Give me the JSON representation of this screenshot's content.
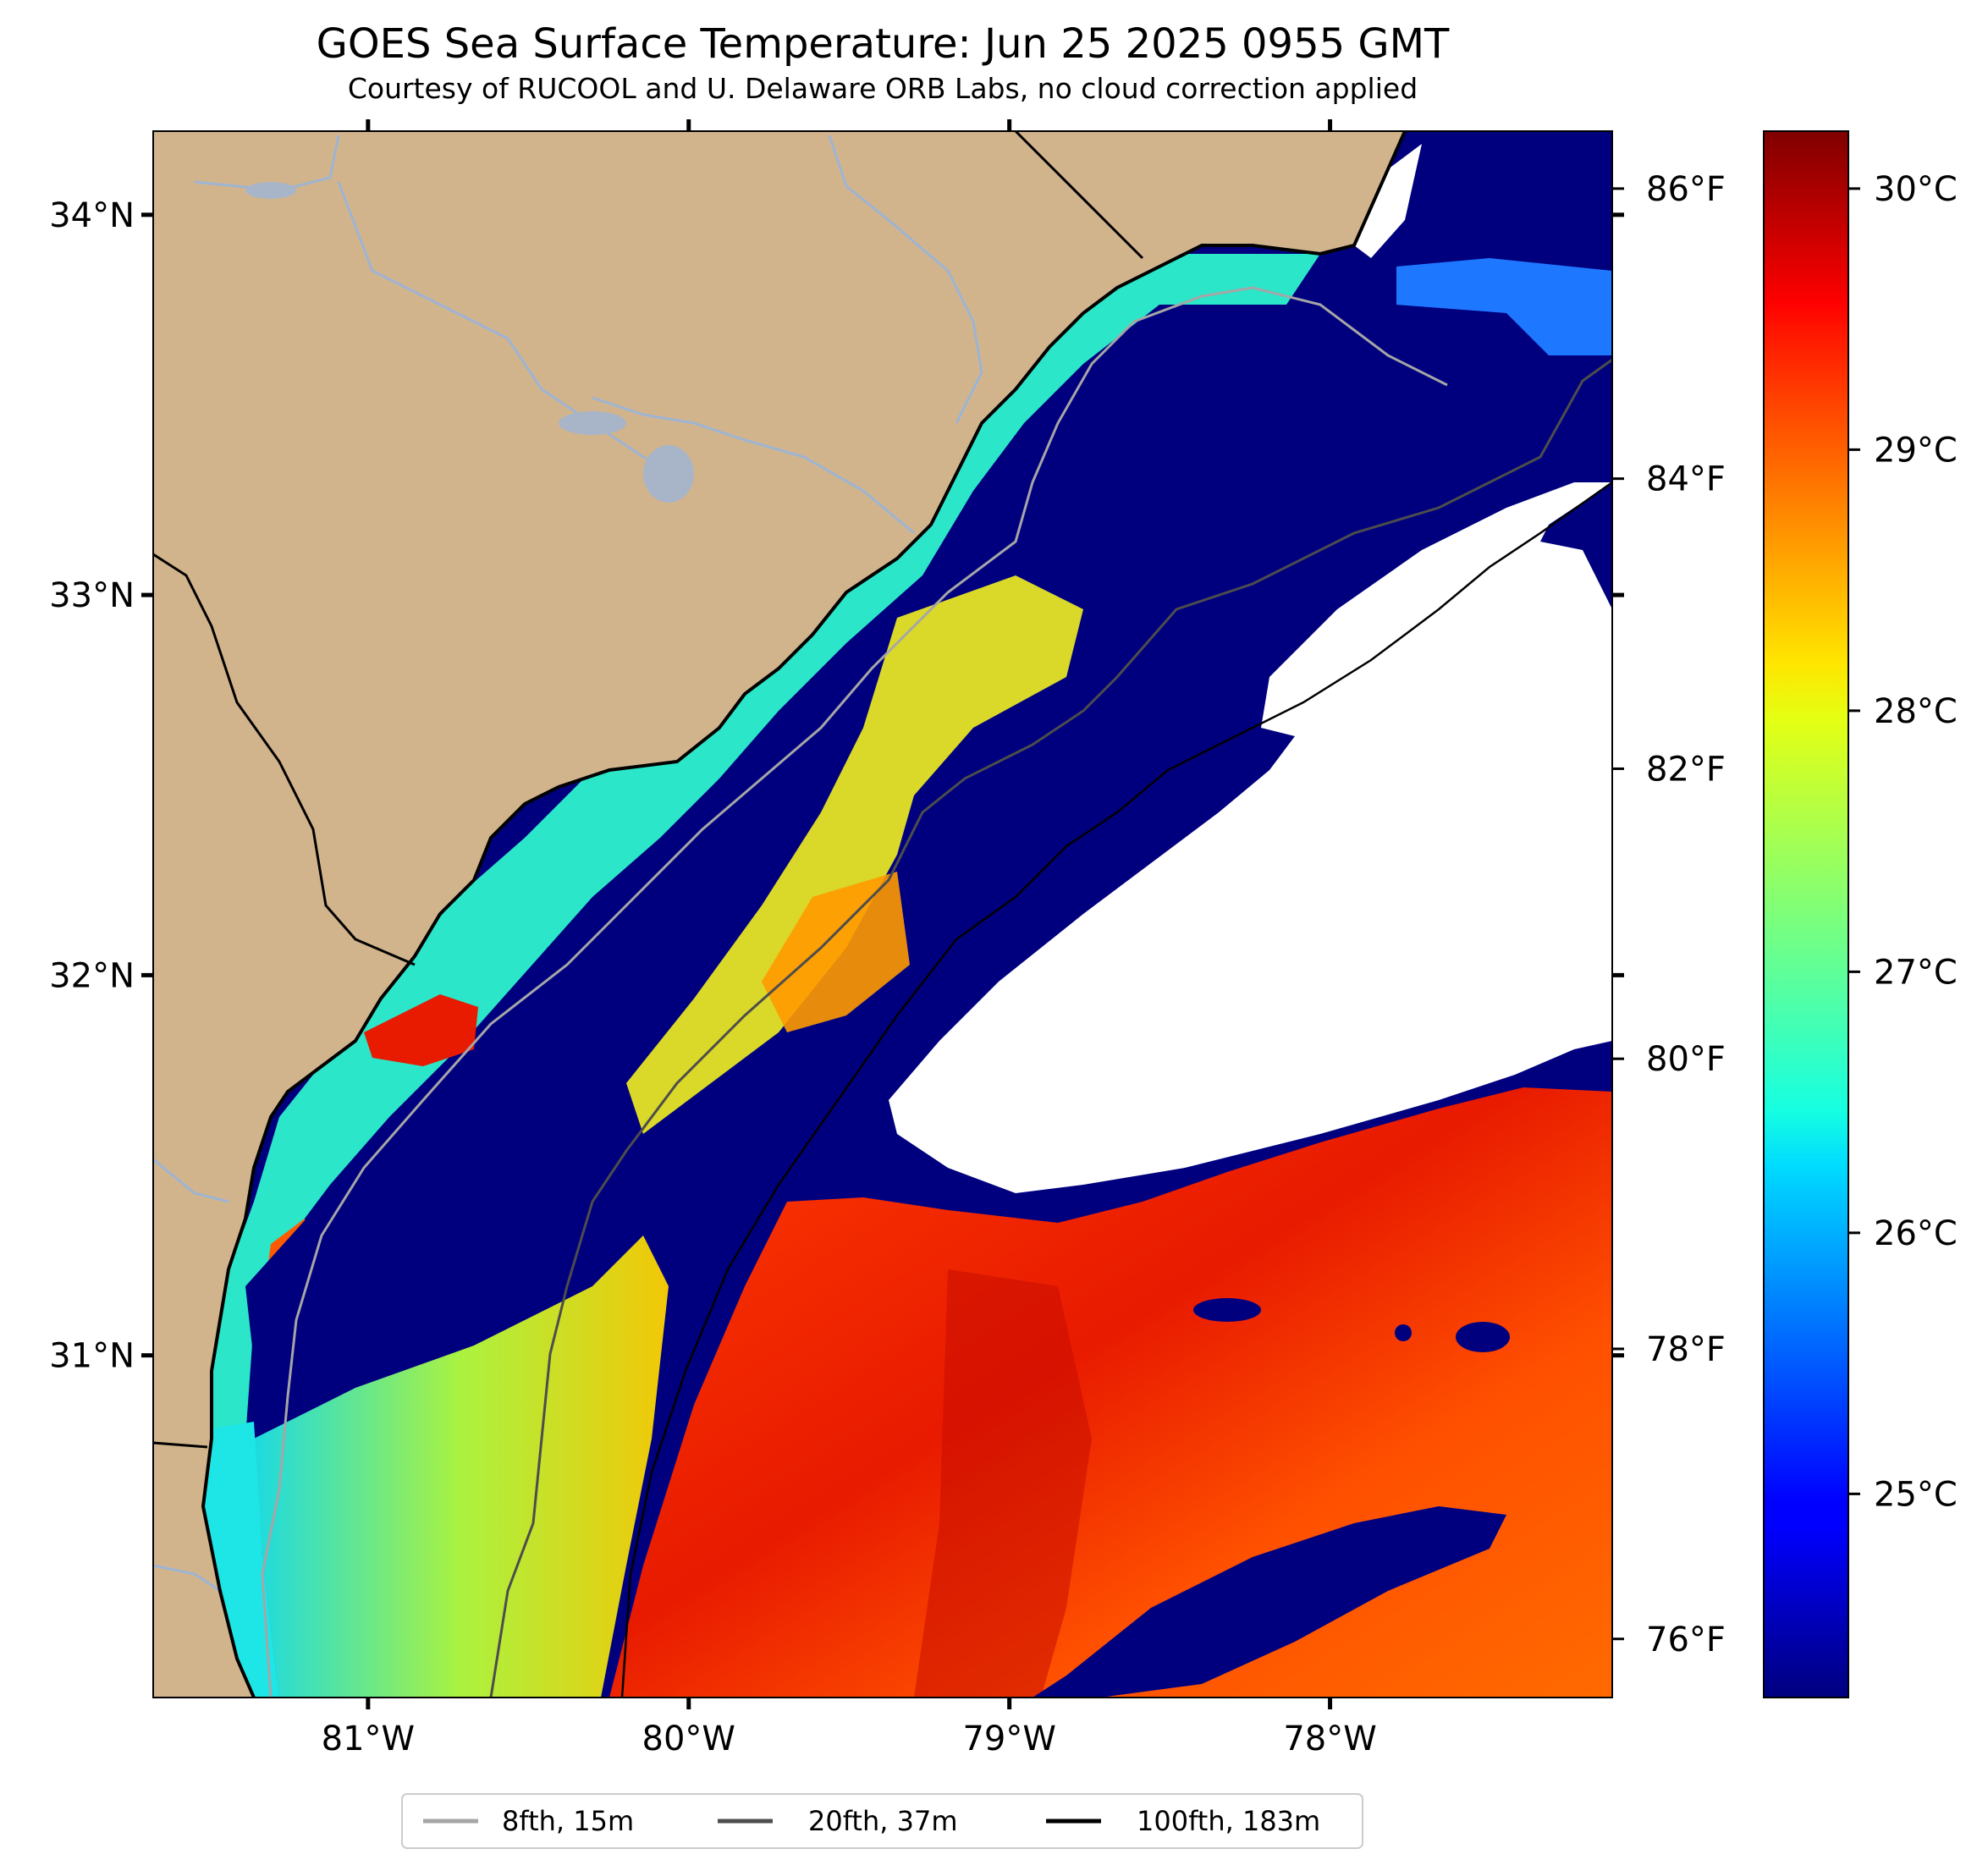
{
  "header": {
    "title": "GOES Sea Surface Temperature: Jun 25 2025 0955 GMT",
    "subtitle": "Courtesy of RUCOOL and U. Delaware ORB Labs, no cloud correction applied"
  },
  "map": {
    "lon_ticks": [
      {
        "value": -81,
        "label": "81°W"
      },
      {
        "value": -80,
        "label": "80°W"
      },
      {
        "value": -79,
        "label": "79°W"
      },
      {
        "value": -78,
        "label": "78°W"
      }
    ],
    "lat_ticks": [
      {
        "value": 34,
        "label": "34°N"
      },
      {
        "value": 33,
        "label": "33°N"
      },
      {
        "value": 32,
        "label": "32°N"
      },
      {
        "value": 31,
        "label": "31°N"
      }
    ],
    "extent": {
      "lon_min": -81.67,
      "lon_max": -77.12,
      "lat_min": 30.1,
      "lat_max": 34.22
    }
  },
  "colorbar": {
    "colormap": "jet",
    "celsius_range": [
      24.22,
      30.22
    ],
    "celsius_ticks": [
      {
        "value": 25,
        "label": "25°C"
      },
      {
        "value": 26,
        "label": "26°C"
      },
      {
        "value": 27,
        "label": "27°C"
      },
      {
        "value": 28,
        "label": "28°C"
      },
      {
        "value": 29,
        "label": "29°C"
      },
      {
        "value": 30,
        "label": "30°C"
      }
    ],
    "fahrenheit_ticks": [
      {
        "value": 76,
        "label": "76°F"
      },
      {
        "value": 78,
        "label": "78°F"
      },
      {
        "value": 80,
        "label": "80°F"
      },
      {
        "value": 82,
        "label": "82°F"
      },
      {
        "value": 84,
        "label": "84°F"
      },
      {
        "value": 86,
        "label": "86°F"
      }
    ]
  },
  "legend": {
    "entries": [
      {
        "label": "8fth, 15m",
        "color": "#a6a6a6"
      },
      {
        "label": "20fth, 37m",
        "color": "#4d4d4d"
      },
      {
        "label": "100fth, 183m",
        "color": "#000000"
      }
    ]
  },
  "colors": {
    "land": "#d2b48c",
    "cold": "#00007f",
    "river": "#9db4d3"
  }
}
